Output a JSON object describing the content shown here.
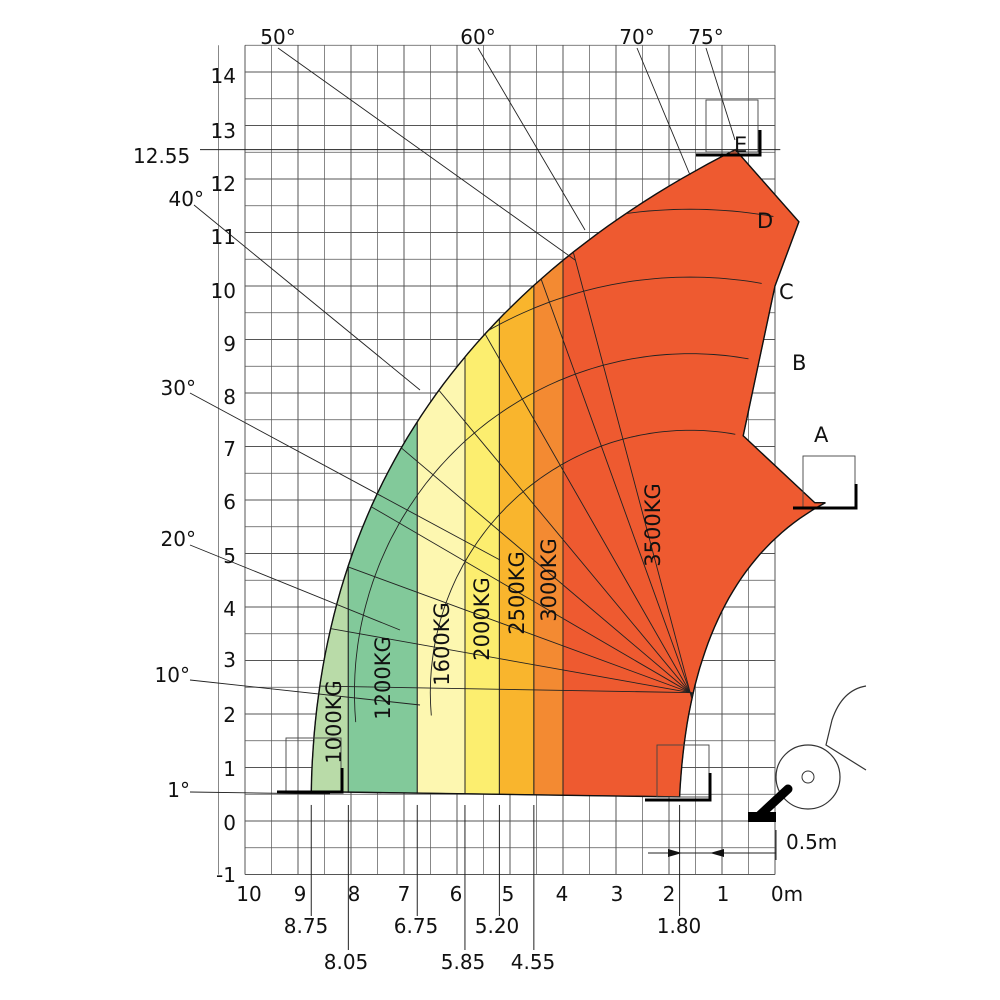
{
  "chart_data": {
    "type": "load-chart",
    "x_ticks": [
      "10",
      "9",
      "8",
      "7",
      "6",
      "5",
      "4",
      "3",
      "2",
      "1",
      "0m"
    ],
    "y_ticks": [
      "14",
      "13",
      "12",
      "11",
      "10",
      "9",
      "8",
      "7",
      "6",
      "5",
      "4",
      "3",
      "2",
      "1",
      "0",
      "-1"
    ],
    "x_refs": [
      "8.75",
      "8.05",
      "6.75",
      "5.85",
      "5.20",
      "4.55",
      "1.80"
    ],
    "y_ref": "12.55",
    "scale_label": "0.5m",
    "angle_labels": [
      "50°",
      "60°",
      "70°",
      "75°",
      "40°",
      "30°",
      "20°",
      "10°",
      "1°"
    ],
    "angles": [
      1,
      10,
      20,
      30,
      40,
      50,
      60,
      70,
      75
    ],
    "extension_points": [
      "A",
      "B",
      "C",
      "D",
      "E"
    ],
    "capacity_zones": [
      {
        "label": "1000KG",
        "from": 8.75,
        "to": 8.05,
        "color": "#b9dba8"
      },
      {
        "label": "1200KG",
        "from": 8.05,
        "to": 6.75,
        "color": "#82c99a"
      },
      {
        "label": "1600KG",
        "from": 6.75,
        "to": 5.85,
        "color": "#fdf7b0"
      },
      {
        "label": "2000KG",
        "from": 5.85,
        "to": 5.2,
        "color": "#fcee6f"
      },
      {
        "label": "2500KG",
        "from": 5.2,
        "to": 4.55,
        "color": "#f9b52d"
      },
      {
        "label": "3000KG",
        "from": 4.55,
        "to": 4.0,
        "color": "#f38a32"
      },
      {
        "label": "3500KG",
        "from": 4.0,
        "to": -1.0,
        "color": "#ee5a30"
      }
    ]
  }
}
